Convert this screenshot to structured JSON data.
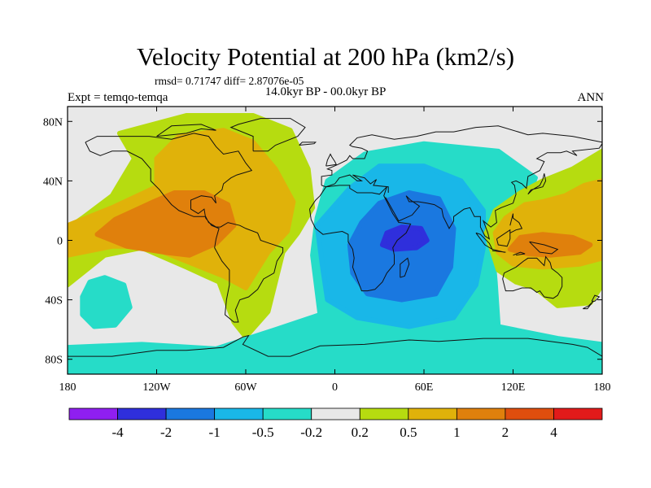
{
  "title": "Velocity Potential at 200 hPa (km2/s)",
  "stats": "rmsd= 0.71747 diff= 2.87076e-05",
  "subtitle": "14.0kyr BP - 00.0kyr BP",
  "expt": "Expt = temqo-temqa",
  "season": "ANN",
  "axes": {
    "lon_ticks": [
      {
        "value": -180,
        "label": "180"
      },
      {
        "value": -120,
        "label": "120W"
      },
      {
        "value": -60,
        "label": "60W"
      },
      {
        "value": 0,
        "label": "0"
      },
      {
        "value": 60,
        "label": "60E"
      },
      {
        "value": 120,
        "label": "120E"
      },
      {
        "value": 180,
        "label": "180"
      }
    ],
    "lat_ticks": [
      {
        "value": 80,
        "label": "80N"
      },
      {
        "value": 40,
        "label": "40N"
      },
      {
        "value": 0,
        "label": "0"
      },
      {
        "value": -40,
        "label": "40S"
      },
      {
        "value": -80,
        "label": "80S"
      }
    ],
    "lon_range": [
      -180,
      180
    ],
    "lat_range": [
      -90,
      90
    ]
  },
  "colorbar": {
    "colors": [
      "#8f1ff0",
      "#2f2fdc",
      "#1a78e0",
      "#19b7e8",
      "#26dcc8",
      "#e8e8e8",
      "#b6dc10",
      "#e0b20a",
      "#e0800c",
      "#e04e0e",
      "#e21a1a"
    ],
    "labels": [
      "-4",
      "-2",
      "-1",
      "-0.5",
      "-0.2",
      "0.2",
      "0.5",
      "1",
      "2",
      "4"
    ]
  },
  "chart_data": {
    "type": "heatmap",
    "title": "Velocity Potential at 200 hPa (km2/s)",
    "subtitle": "14.0kyr BP - 00.0kyr BP",
    "units": "km2/s",
    "levels": [
      -4,
      -2,
      -1,
      -0.5,
      -0.2,
      0.2,
      0.5,
      1,
      2,
      4
    ],
    "background_class_index": 5,
    "regions": [
      {
        "name": "north-atlantic-north-america-positive",
        "level_index": 6,
        "poly": [
          [
            -180,
            8
          ],
          [
            -180,
            -30
          ],
          [
            -155,
            -10
          ],
          [
            -130,
            -5
          ],
          [
            -100,
            -18
          ],
          [
            -78,
            -28
          ],
          [
            -68,
            -55
          ],
          [
            -60,
            -65
          ],
          [
            -45,
            -48
          ],
          [
            -35,
            -8
          ],
          [
            -25,
            5
          ],
          [
            -15,
            22
          ],
          [
            -18,
            48
          ],
          [
            -30,
            74
          ],
          [
            -55,
            84
          ],
          [
            -100,
            84
          ],
          [
            -145,
            72
          ],
          [
            -135,
            55
          ],
          [
            -150,
            30
          ],
          [
            -170,
            15
          ]
        ]
      },
      {
        "name": "atlantic-positive-core",
        "level_index": 7,
        "poly": [
          [
            -180,
            10
          ],
          [
            -180,
            -10
          ],
          [
            -150,
            -4
          ],
          [
            -125,
            -4
          ],
          [
            -100,
            -14
          ],
          [
            -75,
            -24
          ],
          [
            -60,
            -32
          ],
          [
            -45,
            -8
          ],
          [
            -32,
            6
          ],
          [
            -28,
            26
          ],
          [
            -40,
            48
          ],
          [
            -55,
            66
          ],
          [
            -75,
            74
          ],
          [
            -105,
            70
          ],
          [
            -120,
            55
          ],
          [
            -120,
            36
          ],
          [
            -150,
            22
          ]
        ]
      },
      {
        "name": "caribbean-maximum",
        "level_index": 8,
        "poly": [
          [
            -160,
            4
          ],
          [
            -140,
            -4
          ],
          [
            -115,
            -8
          ],
          [
            -98,
            -10
          ],
          [
            -80,
            -2
          ],
          [
            -68,
            10
          ],
          [
            -72,
            24
          ],
          [
            -88,
            32
          ],
          [
            -108,
            32
          ],
          [
            -122,
            26
          ],
          [
            -148,
            14
          ]
        ]
      },
      {
        "name": "south-pacific-negative",
        "level_index": 4,
        "poly": [
          [
            -170,
            -38
          ],
          [
            -165,
            -28
          ],
          [
            -155,
            -25
          ],
          [
            -142,
            -30
          ],
          [
            -138,
            -45
          ],
          [
            -148,
            -57
          ],
          [
            -162,
            -58
          ],
          [
            -170,
            -50
          ]
        ]
      },
      {
        "name": "southern-ocean-negative",
        "level_index": 4,
        "poly": [
          [
            -180,
            -72
          ],
          [
            -130,
            -70
          ],
          [
            -80,
            -73
          ],
          [
            -40,
            -60
          ],
          [
            -10,
            -50
          ],
          [
            -15,
            -10
          ],
          [
            -12,
            15
          ],
          [
            -5,
            40
          ],
          [
            20,
            58
          ],
          [
            60,
            65
          ],
          [
            110,
            60
          ],
          [
            135,
            42
          ],
          [
            128,
            25
          ],
          [
            112,
            10
          ],
          [
            106,
            -5
          ],
          [
            108,
            -28
          ],
          [
            110,
            -58
          ],
          [
            150,
            -66
          ],
          [
            180,
            -70
          ],
          [
            180,
            -90
          ],
          [
            -180,
            -90
          ]
        ]
      },
      {
        "name": "indian-ocean-negative",
        "level_index": 3,
        "poly": [
          [
            -12,
            10
          ],
          [
            -8,
            -20
          ],
          [
            -5,
            -40
          ],
          [
            15,
            -52
          ],
          [
            50,
            -58
          ],
          [
            80,
            -52
          ],
          [
            95,
            -30
          ],
          [
            100,
            -5
          ],
          [
            100,
            20
          ],
          [
            85,
            40
          ],
          [
            60,
            50
          ],
          [
            30,
            50
          ],
          [
            10,
            35
          ]
        ]
      },
      {
        "name": "indian-ocean-negative-core",
        "level_index": 2,
        "poly": [
          [
            10,
            -3
          ],
          [
            12,
            -22
          ],
          [
            22,
            -36
          ],
          [
            45,
            -40
          ],
          [
            68,
            -36
          ],
          [
            78,
            -18
          ],
          [
            80,
            8
          ],
          [
            70,
            28
          ],
          [
            50,
            32
          ],
          [
            30,
            25
          ],
          [
            18,
            12
          ]
        ]
      },
      {
        "name": "arabian-sea-minimum",
        "level_index": 1,
        "poly": [
          [
            32,
            -3
          ],
          [
            40,
            -6
          ],
          [
            55,
            -5
          ],
          [
            62,
            0
          ],
          [
            58,
            8
          ],
          [
            45,
            9
          ],
          [
            35,
            5
          ]
        ]
      },
      {
        "name": "west-pacific-positive",
        "level_index": 6,
        "poly": [
          [
            110,
            -20
          ],
          [
            122,
            -28
          ],
          [
            135,
            -32
          ],
          [
            150,
            -44
          ],
          [
            172,
            -42
          ],
          [
            180,
            -30
          ],
          [
            180,
            60
          ],
          [
            160,
            48
          ],
          [
            140,
            40
          ],
          [
            125,
            32
          ],
          [
            108,
            20
          ],
          [
            102,
            5
          ]
        ]
      },
      {
        "name": "maritime-continent-core",
        "level_index": 7,
        "poly": [
          [
            110,
            -8
          ],
          [
            120,
            -16
          ],
          [
            140,
            -18
          ],
          [
            165,
            -16
          ],
          [
            180,
            -12
          ],
          [
            180,
            40
          ],
          [
            168,
            37
          ],
          [
            155,
            30
          ],
          [
            140,
            26
          ],
          [
            128,
            24
          ],
          [
            115,
            15
          ],
          [
            108,
            5
          ]
        ]
      },
      {
        "name": "maritime-continent-maximum",
        "level_index": 8,
        "poly": [
          [
            118,
            -6
          ],
          [
            130,
            -9
          ],
          [
            145,
            -10
          ],
          [
            165,
            -8
          ],
          [
            172,
            -3
          ],
          [
            160,
            2
          ],
          [
            140,
            4
          ],
          [
            125,
            2
          ]
        ]
      }
    ]
  }
}
